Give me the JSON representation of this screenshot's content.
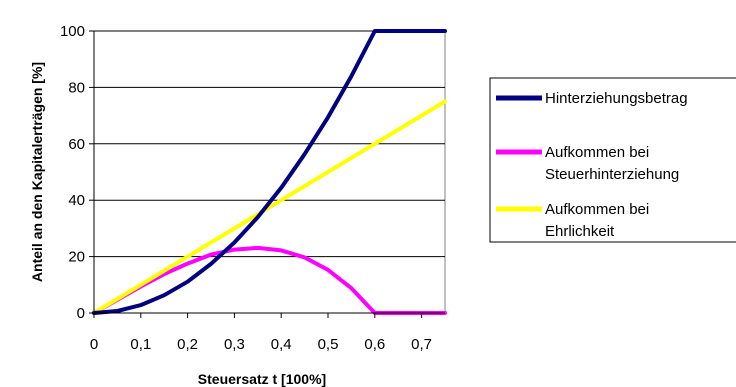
{
  "chart_data": {
    "type": "line",
    "xlabel": "Steuersatz t [100%]",
    "ylabel": "Anteil an den Kapitalerträgen [%]",
    "xlim": [
      0,
      0.75
    ],
    "ylim": [
      0,
      100
    ],
    "x_ticks": [
      "0",
      "0,1",
      "0,2",
      "0,3",
      "0,4",
      "0,5",
      "0,6",
      "0,7"
    ],
    "y_ticks": [
      "0",
      "20",
      "40",
      "60",
      "80",
      "100"
    ],
    "grid": "horizontal",
    "legend_position": "right",
    "series": [
      {
        "name": "Hinterziehungsbetrag",
        "color": "#000080",
        "x": [
          0,
          0.05,
          0.1,
          0.15,
          0.2,
          0.25,
          0.3,
          0.35,
          0.4,
          0.45,
          0.5,
          0.55,
          0.6,
          0.65,
          0.7,
          0.75
        ],
        "y": [
          0,
          0.7,
          2.8,
          6.3,
          11.1,
          17.4,
          25,
          34,
          44.4,
          56.3,
          69.4,
          84,
          100,
          100,
          100,
          100
        ]
      },
      {
        "name_lines": [
          "Aufkommen bei",
          "Steuerhinterziehung"
        ],
        "color": "#ff00ff",
        "x": [
          0,
          0.05,
          0.1,
          0.15,
          0.2,
          0.25,
          0.3,
          0.35,
          0.4,
          0.45,
          0.5,
          0.55,
          0.6,
          0.65,
          0.7,
          0.75
        ],
        "y": [
          0,
          4.7,
          9.4,
          13.8,
          17.5,
          20.7,
          22.5,
          23.1,
          22.2,
          19.7,
          15.3,
          8.8,
          0,
          0,
          0,
          0
        ]
      },
      {
        "name_lines": [
          "Aufkommen bei",
          "Ehrlichkeit"
        ],
        "color": "#ffff00",
        "x": [
          0,
          0.75
        ],
        "y": [
          0,
          75
        ]
      }
    ]
  }
}
